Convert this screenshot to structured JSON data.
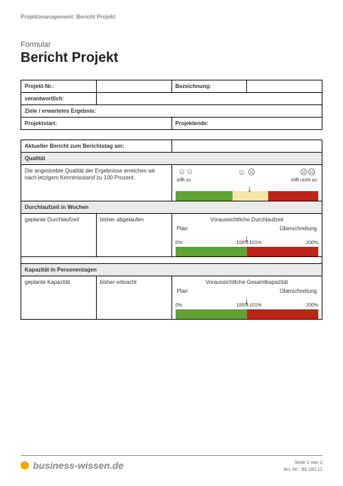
{
  "breadcrumb": "Projektmanagement: Bericht Projekt",
  "pretitle": "Formular",
  "title": "Bericht Projekt",
  "meta": {
    "projekt_nr_label": "Projekt-Nr.:",
    "bezeichnung_label": "Bezeichnung:",
    "verantwortlich_label": "verantwortlich:",
    "ziele_label": "Ziele / erwartetes Ergebnis:",
    "projektstart_label": "Projektstart:",
    "projektende_label": "Projektende:"
  },
  "report_header": "Aktueller Bericht zum Berichtstag am:",
  "quality": {
    "header": "Qualität",
    "text": "Die angestrebte Qualität der Ergebnisse erreichen wir nach jetzigem Kenntnisstand zu 100 Prozent.",
    "label_left": "trifft zu",
    "label_right": "trifft nicht zu",
    "smileys": {
      "left": "☺☺",
      "mid": "☺ ☹",
      "right": "☹☹"
    },
    "arrow_pct": 52,
    "bar": {
      "segments": [
        {
          "width_pct": 40,
          "color": "#5ea333"
        },
        {
          "width_pct": 25,
          "color": "#f3e6a7"
        },
        {
          "width_pct": 35,
          "color": "#c02418"
        }
      ]
    }
  },
  "durchlauf": {
    "header": "Durchlaufzeit in Wochen",
    "col1": "geplante Durchlaufzeit",
    "col2": "bisher abgelaufen",
    "right_title": "Voraussichtliche Durchlaufzeit",
    "plan_label": "Plan",
    "ueber_label": "Überschreitung",
    "ticks": {
      "p0": "0%",
      "p100": "100%",
      "p101": "101%",
      "p200": "200%"
    },
    "arrow_pct": 50,
    "bar": {
      "segments": [
        {
          "width_pct": 50,
          "color": "#5ea333"
        },
        {
          "width_pct": 50,
          "color": "#c02418"
        }
      ]
    }
  },
  "kapazitaet": {
    "header": "Kapazität in Personentagen",
    "col1": "geplante Kapazität",
    "col2": "bisher erbracht",
    "right_title": "Voraussichtliche Gesamtkapazität",
    "plan_label": "Plan",
    "ueber_label": "Überschreitung",
    "ticks": {
      "p0": "0%",
      "p100": "100%",
      "p101": "101%",
      "p200": "200%"
    },
    "arrow_pct": 50,
    "bar": {
      "segments": [
        {
          "width_pct": 50,
          "color": "#5ea333"
        },
        {
          "width_pct": 50,
          "color": "#c02418"
        }
      ]
    }
  },
  "footer": {
    "brand_dot_color": "#f5a400",
    "brand_text": "business-wissen.de",
    "page_text": "Seite 1 von 2",
    "art_text": "Art.-Nr.: 99.160.11"
  }
}
